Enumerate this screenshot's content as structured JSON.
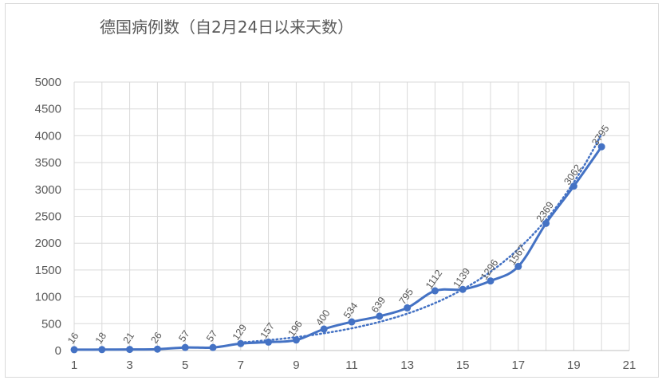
{
  "chart_data": {
    "type": "line",
    "title": "德国病例数（自2月24日以来天数）",
    "xlabel": "",
    "ylabel": "",
    "xlim": [
      1,
      21
    ],
    "ylim": [
      0,
      5000
    ],
    "x_ticks": [
      1,
      3,
      5,
      7,
      9,
      11,
      13,
      15,
      17,
      19,
      21
    ],
    "y_ticks": [
      0,
      500,
      1000,
      1500,
      2000,
      2500,
      3000,
      3500,
      4000,
      4500,
      5000
    ],
    "grid": "horizontal and vertical",
    "legend": "none",
    "series": [
      {
        "x": [
          1,
          2,
          3,
          4,
          5,
          6,
          7,
          8,
          9,
          10,
          11,
          12,
          13,
          14,
          15,
          16,
          17,
          18,
          19,
          20
        ],
        "values": [
          16,
          18,
          21,
          26,
          57,
          57,
          129,
          157,
          196,
          400,
          534,
          639,
          795,
          1112,
          1139,
          1296,
          1567,
          2369,
          3062,
          3795
        ],
        "color": "#4472c4",
        "style": "smooth line with markers"
      }
    ],
    "trendline": {
      "type": "exponential",
      "color": "#4472c4",
      "style": "dotted",
      "x_range": [
        7,
        20
      ]
    },
    "data_labels": [
      "16",
      "18",
      "21",
      "26",
      "57",
      "57",
      "129",
      "157",
      "196",
      "400",
      "534",
      "639",
      "795",
      "1112",
      "1139",
      "1296",
      "1567",
      "2369",
      "3062",
      "3795"
    ]
  }
}
